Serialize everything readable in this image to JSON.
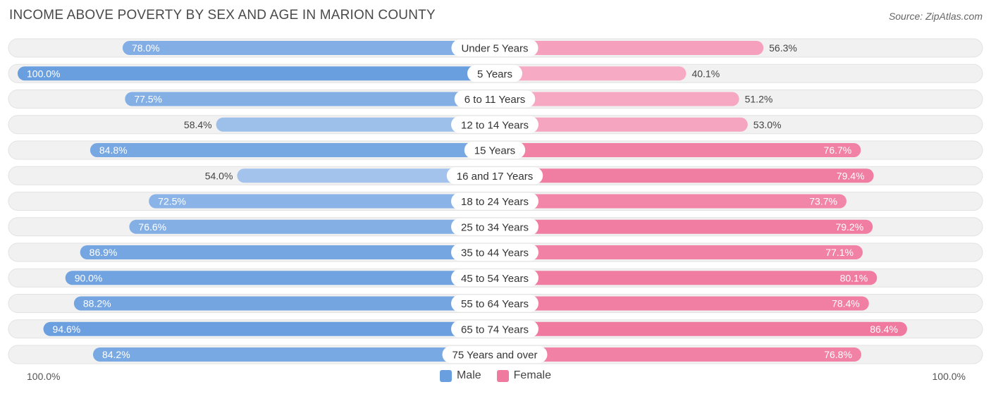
{
  "title": "INCOME ABOVE POVERTY BY SEX AND AGE IN MARION COUNTY",
  "source": "Source: ZipAtlas.com",
  "axis_left_label": "100.0%",
  "axis_right_label": "100.0%",
  "colors": {
    "male_strong": "#6a9fdf",
    "male_light": "#a9c7ee",
    "female_strong": "#f0799f",
    "female_light": "#f6aac3",
    "track": "#f0f0f0"
  },
  "legend": {
    "male": "Male",
    "female": "Female"
  },
  "chart_data": {
    "type": "bar",
    "orientation": "horizontal-diverging",
    "title": "INCOME ABOVE POVERTY BY SEX AND AGE IN MARION COUNTY",
    "categories": [
      "Under 5 Years",
      "5 Years",
      "6 to 11 Years",
      "12 to 14 Years",
      "15 Years",
      "16 and 17 Years",
      "18 to 24 Years",
      "25 to 34 Years",
      "35 to 44 Years",
      "45 to 54 Years",
      "55 to 64 Years",
      "65 to 74 Years",
      "75 Years and over"
    ],
    "series": [
      {
        "name": "Male",
        "values": [
          78.0,
          100.0,
          77.5,
          58.4,
          84.8,
          54.0,
          72.5,
          76.6,
          86.9,
          90.0,
          88.2,
          94.6,
          84.2
        ]
      },
      {
        "name": "Female",
        "values": [
          56.3,
          40.1,
          51.2,
          53.0,
          76.7,
          79.4,
          73.7,
          79.2,
          77.1,
          80.1,
          78.4,
          86.4,
          76.8
        ]
      }
    ],
    "value_labels": {
      "male": [
        "78.0%",
        "100.0%",
        "77.5%",
        "58.4%",
        "84.8%",
        "54.0%",
        "72.5%",
        "76.6%",
        "86.9%",
        "90.0%",
        "88.2%",
        "94.6%",
        "84.2%"
      ],
      "female": [
        "56.3%",
        "40.1%",
        "51.2%",
        "53.0%",
        "76.7%",
        "79.4%",
        "73.7%",
        "79.2%",
        "77.1%",
        "80.1%",
        "78.4%",
        "86.4%",
        "76.8%"
      ]
    },
    "xlim": [
      0,
      100
    ],
    "legend_position": "bottom-center"
  }
}
